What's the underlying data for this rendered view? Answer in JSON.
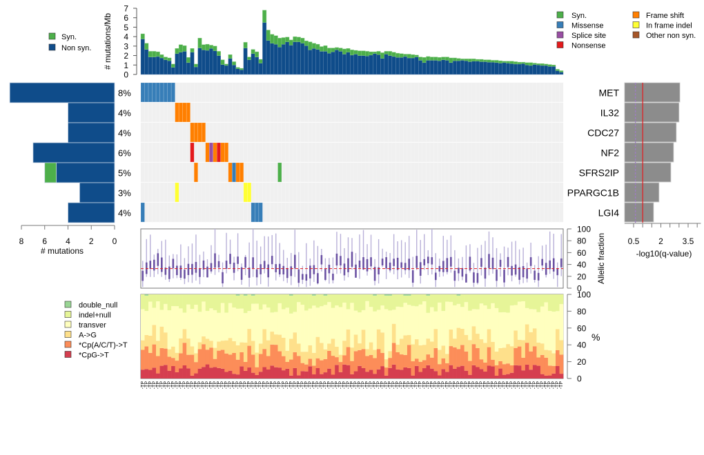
{
  "colors": {
    "syn": "#4daf4a",
    "nonsyn": "#0f4c8a",
    "missense": "#377eb8",
    "splice": "#984ea3",
    "nonsense": "#e41a1c",
    "frameshift": "#ff7f00",
    "inframe": "#ffff33",
    "other": "#a65628",
    "grid_bg": "#f0f0f0",
    "qbar": "#8c8c8c",
    "qline_red": "#e41a1c",
    "qline_purple": "#9e7cc1",
    "af_whisker": "#b8b0d8",
    "af_box": "#6a51a3",
    "af_median": "#e41a1c",
    "spectrum": [
      "#d53e4f",
      "#fc8d59",
      "#fee08b",
      "#ffffbf",
      "#e6f598",
      "#99d594"
    ]
  },
  "legends": {
    "top_left": [
      {
        "key": "syn",
        "label": "Syn."
      },
      {
        "key": "nonsyn",
        "label": "Non syn."
      }
    ],
    "top_right_col1": [
      {
        "key": "syn",
        "label": "Syn."
      },
      {
        "key": "missense",
        "label": "Missense"
      },
      {
        "key": "splice",
        "label": "Splice site"
      },
      {
        "key": "nonsense",
        "label": "Nonsense"
      }
    ],
    "top_right_col2": [
      {
        "key": "frameshift",
        "label": "Frame shift"
      },
      {
        "key": "inframe",
        "label": "In frame indel"
      },
      {
        "key": "other",
        "label": "Other non syn."
      }
    ],
    "spectrum": [
      {
        "idx": 5,
        "label": "double_null"
      },
      {
        "idx": 4,
        "label": "indel+null"
      },
      {
        "idx": 3,
        "label": "transver"
      },
      {
        "idx": 2,
        "label": "A->G"
      },
      {
        "idx": 1,
        "label": "*Cp(A/C/T)->T"
      },
      {
        "idx": 0,
        "label": "*CpG->T"
      }
    ]
  },
  "chart_data": [
    {
      "id": "mutation-rate",
      "type": "bar",
      "stacked": true,
      "ylabel": "# mutations/Mb",
      "ylim": [
        0,
        7
      ],
      "yticks": [
        0,
        1,
        2,
        3,
        4,
        5,
        6,
        7
      ],
      "n_samples": 111,
      "series": [
        {
          "name": "Non syn.",
          "key": "nonsyn",
          "values": [
            3.75,
            2.65,
            1.85,
            1.85,
            1.9,
            1.75,
            1.55,
            1.45,
            0.75,
            2.2,
            2.35,
            2.45,
            1.25,
            2.35,
            0.8,
            2.8,
            2.6,
            2.55,
            2.75,
            2.5,
            2.0,
            1.05,
            0.95,
            1.7,
            1.0,
            0.6,
            0.5,
            2.8,
            1.55,
            2.2,
            1.85,
            1.2,
            5.5,
            3.6,
            3.3,
            3.2,
            2.9,
            3.2,
            3.45,
            3.1,
            3.45,
            3.45,
            3.3,
            3.05,
            2.6,
            2.75,
            2.65,
            2.45,
            2.45,
            2.25,
            2.4,
            2.6,
            2.45,
            2.15,
            2.35,
            2.05,
            2.15,
            2.0,
            2.0,
            1.95,
            2.05,
            2.2,
            2.1,
            1.7,
            2.15,
            2.0,
            1.9,
            1.8,
            1.8,
            1.9,
            1.75,
            1.75,
            1.85,
            1.5,
            1.25,
            1.5,
            1.5,
            1.5,
            1.45,
            1.55,
            1.5,
            1.25,
            1.45,
            1.45,
            1.5,
            1.45,
            1.35,
            1.4,
            1.4,
            1.35,
            1.35,
            1.3,
            1.3,
            1.25,
            1.2,
            1.25,
            1.2,
            1.15,
            1.1,
            1.1,
            1.15,
            1.0,
            0.95,
            1.05,
            1.0,
            0.95,
            0.95,
            0.85,
            0.85,
            0.4,
            0.25
          ]
        },
        {
          "name": "Syn.",
          "key": "syn",
          "values": [
            0.55,
            0.65,
            0.6,
            0.6,
            0.5,
            0.35,
            0.3,
            0.3,
            0.35,
            0.55,
            0.8,
            0.6,
            0.55,
            0.4,
            0.3,
            1.05,
            0.55,
            0.65,
            0.35,
            0.5,
            0.45,
            0.5,
            0.15,
            0.4,
            0.35,
            0.15,
            0.15,
            0.6,
            0.3,
            0.45,
            0.55,
            0.4,
            1.3,
            1.1,
            0.95,
            0.9,
            0.95,
            0.7,
            0.5,
            0.55,
            0.55,
            0.5,
            0.55,
            0.5,
            0.85,
            0.55,
            0.55,
            0.5,
            0.6,
            0.55,
            0.4,
            0.25,
            0.35,
            0.55,
            0.4,
            0.55,
            0.4,
            0.5,
            0.5,
            0.5,
            0.35,
            0.2,
            0.35,
            0.6,
            0.3,
            0.45,
            0.45,
            0.45,
            0.4,
            0.25,
            0.4,
            0.35,
            0.2,
            0.35,
            0.55,
            0.4,
            0.35,
            0.35,
            0.35,
            0.3,
            0.35,
            0.5,
            0.3,
            0.25,
            0.15,
            0.2,
            0.3,
            0.25,
            0.2,
            0.25,
            0.2,
            0.25,
            0.2,
            0.25,
            0.25,
            0.15,
            0.2,
            0.25,
            0.25,
            0.2,
            0.15,
            0.25,
            0.3,
            0.15,
            0.15,
            0.2,
            0.15,
            0.2,
            0.15,
            0.15,
            0.15
          ]
        }
      ]
    },
    {
      "id": "gene-counts",
      "type": "bar",
      "orientation": "horizontal",
      "xlabel": "# mutations",
      "xlim": [
        8,
        0
      ],
      "xticks": [
        8,
        6,
        4,
        2,
        0
      ],
      "categories": [
        "MET",
        "IL32",
        "CDC27",
        "NF2",
        "SFRS2IP",
        "PPARGC1B",
        "LGI4"
      ],
      "percent_labels": [
        "8%",
        "4%",
        "4%",
        "6%",
        "5%",
        "3%",
        "4%"
      ],
      "series": [
        {
          "name": "Non syn.",
          "key": "nonsyn",
          "values": [
            9,
            4,
            4,
            7,
            5,
            3,
            4
          ]
        },
        {
          "name": "Syn.",
          "key": "syn",
          "values": [
            0,
            0,
            0,
            0,
            1,
            0,
            0
          ]
        }
      ]
    },
    {
      "id": "oncoprint",
      "type": "heatmap",
      "genes": [
        "MET",
        "IL32",
        "CDC27",
        "NF2",
        "SFRS2IP",
        "PPARGC1B",
        "LGI4"
      ],
      "n_samples": 111,
      "mutations": [
        {
          "gene": 0,
          "samples": [
            0,
            1,
            2,
            3,
            4,
            5,
            6,
            7,
            8
          ],
          "type": "missense"
        },
        {
          "gene": 1,
          "samples": [
            9,
            10,
            11,
            12
          ],
          "type": "frameshift"
        },
        {
          "gene": 2,
          "samples": [
            13,
            14,
            15,
            16
          ],
          "type": "frameshift"
        },
        {
          "gene": 3,
          "samples": [
            13
          ],
          "type": "nonsense"
        },
        {
          "gene": 3,
          "samples": [
            17
          ],
          "type": "frameshift"
        },
        {
          "gene": 3,
          "samples": [
            18
          ],
          "type": "splice"
        },
        {
          "gene": 3,
          "samples": [
            19
          ],
          "type": "frameshift"
        },
        {
          "gene": 3,
          "samples": [
            20
          ],
          "type": "nonsense"
        },
        {
          "gene": 3,
          "samples": [
            21,
            22
          ],
          "type": "frameshift"
        },
        {
          "gene": 4,
          "samples": [
            14
          ],
          "type": "frameshift"
        },
        {
          "gene": 4,
          "samples": [
            23
          ],
          "type": "frameshift"
        },
        {
          "gene": 4,
          "samples": [
            24
          ],
          "type": "missense"
        },
        {
          "gene": 4,
          "samples": [
            25,
            26
          ],
          "type": "frameshift"
        },
        {
          "gene": 4,
          "samples": [
            36
          ],
          "type": "syn"
        },
        {
          "gene": 5,
          "samples": [
            9
          ],
          "type": "inframe"
        },
        {
          "gene": 5,
          "samples": [
            27,
            28
          ],
          "type": "inframe"
        },
        {
          "gene": 6,
          "samples": [
            0
          ],
          "type": "missense"
        },
        {
          "gene": 6,
          "samples": [
            29,
            30,
            31
          ],
          "type": "missense"
        }
      ]
    },
    {
      "id": "qvalues",
      "type": "bar",
      "orientation": "horizontal",
      "xlabel": "-log10(q-value)",
      "xlim": [
        0,
        4.2
      ],
      "xticks": [
        0.5,
        2.0,
        3.5
      ],
      "minor_ticks": [
        0.5,
        1.0,
        1.5,
        2.0,
        2.5,
        3.0,
        3.5,
        4.0
      ],
      "categories": [
        "MET",
        "IL32",
        "CDC27",
        "NF2",
        "SFRS2IP",
        "PPARGC1B",
        "LGI4"
      ],
      "values": [
        3.05,
        3.0,
        2.85,
        2.7,
        2.55,
        1.9,
        1.6
      ],
      "thresholds": [
        {
          "value": 1.0,
          "style": "solid",
          "color_key": "qline_red"
        },
        {
          "value": 0.6,
          "style": "dashed",
          "color_key": "qline_purple"
        }
      ]
    },
    {
      "id": "allelic-fraction",
      "type": "boxplot",
      "ylabel": "Allelic fraction",
      "ylim": [
        0,
        100
      ],
      "yticks": [
        0,
        20,
        40,
        60,
        80,
        100
      ],
      "median_line": 33,
      "n_samples": 111
    },
    {
      "id": "mutation-spectrum",
      "type": "bar",
      "stacked": true,
      "percent": true,
      "ylabel": "%",
      "ylim": [
        0,
        100
      ],
      "yticks": [
        0,
        20,
        40,
        60,
        80,
        100
      ],
      "categories_legend": [
        "*CpG->T",
        "*Cp(A/C/T)->T",
        "A->G",
        "transver",
        "indel+null",
        "double_null"
      ],
      "n_samples": 111
    }
  ],
  "sample_label_suffix": "-TP"
}
